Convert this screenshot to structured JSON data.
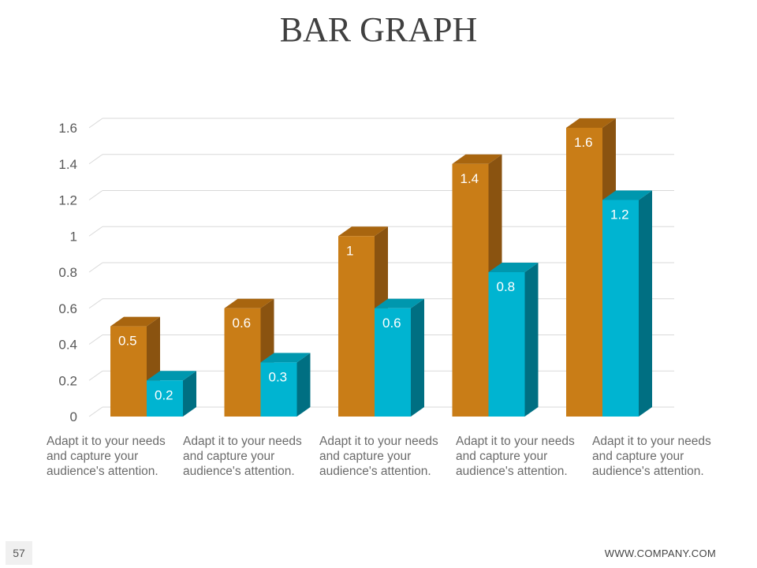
{
  "slide": {
    "title": "BAR GRAPH",
    "page_number": "57",
    "footer": "WWW.COMPANY.COM"
  },
  "colors": {
    "series_1_front": "#c97d17",
    "series_1_side": "#8a5310",
    "series_1_top": "#a8650f",
    "series_2_front": "#00b4d1",
    "series_2_side": "#006f82",
    "series_2_top": "#0097ae",
    "grid": "#d9d9d9",
    "tick_text": "#595959"
  },
  "chart_data": {
    "type": "bar",
    "style": "3d-clustered-column",
    "categories": [
      "Adapt it to your needs and capture your audience's attention.",
      "Adapt it to your needs and capture your audience's attention.",
      "Adapt it to your needs and capture your audience's attention.",
      "Adapt it to your needs and capture your audience's attention.",
      "Adapt it to your needs and capture your audience's attention."
    ],
    "series": [
      {
        "values": [
          0.5,
          0.6,
          1,
          1.4,
          1.6
        ],
        "labels": [
          "0.5",
          "0.6",
          "1",
          "1.4",
          "1.6"
        ]
      },
      {
        "values": [
          0.2,
          0.3,
          0.6,
          0.8,
          1.2
        ],
        "labels": [
          "0.2",
          "0.3",
          "0.6",
          "0.8",
          "1.2"
        ]
      }
    ],
    "ylim": [
      0,
      1.6
    ],
    "yticks": [
      "0",
      "0.2",
      "0.4",
      "0.6",
      "0.8",
      "1",
      "1.2",
      "1.4",
      "1.6"
    ],
    "grid": true,
    "legend": "none"
  }
}
